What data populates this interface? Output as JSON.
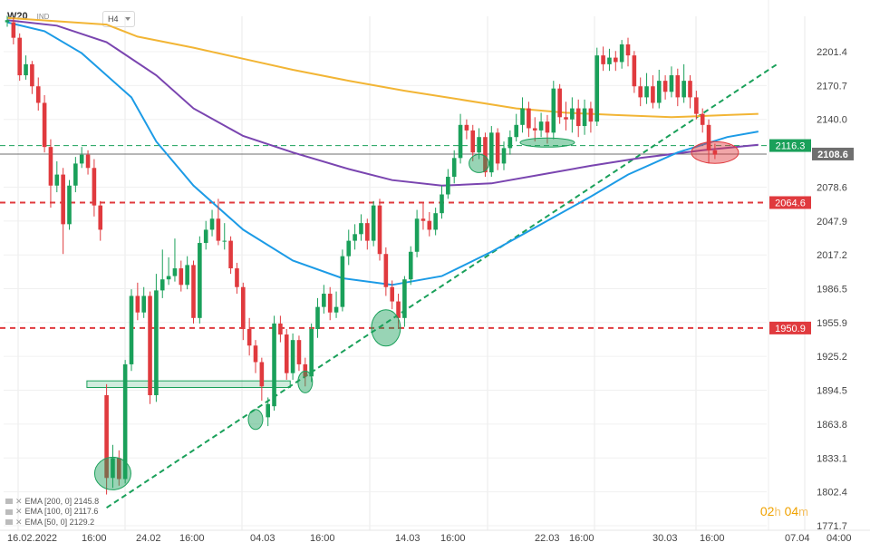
{
  "header": {
    "symbol": "W20",
    "type": "IND",
    "timeframe": "H4"
  },
  "countdown": {
    "hours": "02",
    "h_label": "h",
    "minutes": "04",
    "m_label": "m"
  },
  "legend": [
    {
      "label": "EMA [200, 0] 2145.8"
    },
    {
      "label": "EMA [100, 0] 2117.6"
    },
    {
      "label": "EMA [50, 0] 2129.2"
    }
  ],
  "colors": {
    "up": "#1aa05a",
    "down": "#e03a3e",
    "ema200": "#f2b535",
    "ema100": "#7a45b0",
    "ema50": "#1c9be6",
    "trend": "#1aa05a",
    "level": "#e03a3e",
    "price_badge": "#6f6f6f"
  },
  "chart_data": {
    "type": "candlestick",
    "title": "W20",
    "y_ticks": [
      "2201.4",
      "2170.7",
      "2140.0",
      "2108.6",
      "2078.6",
      "2047.9",
      "2017.2",
      "1986.5",
      "1955.9",
      "1925.2",
      "1894.5",
      "1863.8",
      "1833.1",
      "1802.4",
      "1771.7"
    ],
    "x_ticks": [
      "16.02.2022",
      "16:00",
      "24.02",
      "16:00",
      "04.03",
      "16:00",
      "14.03",
      "16:00",
      "22.03",
      "16:00",
      "30.03",
      "16:00",
      "07.04",
      "04:00"
    ],
    "ylim": [
      1771.7,
      2220
    ],
    "levels": [
      {
        "label": "2064.6",
        "value": 2064.6,
        "style": "dashed",
        "color": "#e03a3e"
      },
      {
        "label": "1950.9",
        "value": 1950.9,
        "style": "dashed",
        "color": "#e03a3e"
      },
      {
        "label": "2116.3",
        "value": 2116.3,
        "style": "dashed-green",
        "color": "#1aa05a"
      },
      {
        "label": "2108.6",
        "value": 2108.6,
        "style": "current",
        "color": "#6f6f6f"
      }
    ],
    "candles": [
      {
        "o": 2228,
        "c": 2230,
        "h": 2234,
        "l": 2224
      },
      {
        "o": 2228,
        "c": 2214,
        "h": 2232,
        "l": 2208
      },
      {
        "o": 2214,
        "c": 2180,
        "h": 2218,
        "l": 2175
      },
      {
        "o": 2180,
        "c": 2190,
        "h": 2198,
        "l": 2176
      },
      {
        "o": 2190,
        "c": 2170,
        "h": 2193,
        "l": 2163
      },
      {
        "o": 2170,
        "c": 2155,
        "h": 2178,
        "l": 2148
      },
      {
        "o": 2155,
        "c": 2115,
        "h": 2162,
        "l": 2110
      },
      {
        "o": 2115,
        "c": 2080,
        "h": 2122,
        "l": 2060
      },
      {
        "o": 2080,
        "c": 2090,
        "h": 2102,
        "l": 2074
      },
      {
        "o": 2090,
        "c": 2045,
        "h": 2096,
        "l": 2018
      },
      {
        "o": 2045,
        "c": 2080,
        "h": 2085,
        "l": 2040
      },
      {
        "o": 2080,
        "c": 2100,
        "h": 2106,
        "l": 2074
      },
      {
        "o": 2100,
        "c": 2108,
        "h": 2115,
        "l": 2096
      },
      {
        "o": 2108,
        "c": 2096,
        "h": 2112,
        "l": 2090
      },
      {
        "o": 2096,
        "c": 2062,
        "h": 2104,
        "l": 2052
      },
      {
        "o": 2062,
        "c": 2040,
        "h": 2066,
        "l": 2030
      },
      {
        "o": 1890,
        "c": 1815,
        "h": 1900,
        "l": 1800
      },
      {
        "o": 1815,
        "c": 1833,
        "h": 1845,
        "l": 1806
      },
      {
        "o": 1833,
        "c": 1814,
        "h": 1840,
        "l": 1808
      },
      {
        "o": 1814,
        "c": 1918,
        "h": 1922,
        "l": 1810
      },
      {
        "o": 1918,
        "c": 1980,
        "h": 1986,
        "l": 1912
      },
      {
        "o": 1980,
        "c": 1965,
        "h": 1992,
        "l": 1958
      },
      {
        "o": 1965,
        "c": 1980,
        "h": 1988,
        "l": 1960
      },
      {
        "o": 1980,
        "c": 1890,
        "h": 1984,
        "l": 1882
      },
      {
        "o": 1890,
        "c": 1985,
        "h": 2000,
        "l": 1884
      },
      {
        "o": 1985,
        "c": 1995,
        "h": 2022,
        "l": 1978
      },
      {
        "o": 1995,
        "c": 1998,
        "h": 2015,
        "l": 1990
      },
      {
        "o": 1998,
        "c": 2005,
        "h": 2032,
        "l": 1993
      },
      {
        "o": 2005,
        "c": 1990,
        "h": 2012,
        "l": 1984
      },
      {
        "o": 1990,
        "c": 2008,
        "h": 2016,
        "l": 1986
      },
      {
        "o": 2008,
        "c": 1960,
        "h": 2012,
        "l": 1955
      },
      {
        "o": 1960,
        "c": 2028,
        "h": 2034,
        "l": 1955
      },
      {
        "o": 2028,
        "c": 2040,
        "h": 2048,
        "l": 2022
      },
      {
        "o": 2040,
        "c": 2050,
        "h": 2058,
        "l": 2034
      },
      {
        "o": 2050,
        "c": 2030,
        "h": 2068,
        "l": 2026
      },
      {
        "o": 2030,
        "c": 2030,
        "h": 2046,
        "l": 2022
      },
      {
        "o": 2030,
        "c": 2005,
        "h": 2034,
        "l": 2000
      },
      {
        "o": 2005,
        "c": 1988,
        "h": 2010,
        "l": 1982
      },
      {
        "o": 1988,
        "c": 1950,
        "h": 1992,
        "l": 1940
      },
      {
        "o": 1950,
        "c": 1935,
        "h": 1960,
        "l": 1926
      },
      {
        "o": 1935,
        "c": 1920,
        "h": 1940,
        "l": 1910
      },
      {
        "o": 1920,
        "c": 1898,
        "h": 1924,
        "l": 1885
      },
      {
        "o": 1870,
        "c": 1882,
        "h": 1888,
        "l": 1862
      },
      {
        "o": 1880,
        "c": 1955,
        "h": 1962,
        "l": 1876
      },
      {
        "o": 1955,
        "c": 1945,
        "h": 1962,
        "l": 1938
      },
      {
        "o": 1945,
        "c": 1910,
        "h": 1950,
        "l": 1904
      },
      {
        "o": 1910,
        "c": 1940,
        "h": 1946,
        "l": 1904
      },
      {
        "o": 1940,
        "c": 1918,
        "h": 1944,
        "l": 1912
      },
      {
        "o": 1918,
        "c": 1907,
        "h": 1924,
        "l": 1898
      },
      {
        "o": 1907,
        "c": 1950,
        "h": 1955,
        "l": 1902
      },
      {
        "o": 1950,
        "c": 1970,
        "h": 1978,
        "l": 1942
      },
      {
        "o": 1970,
        "c": 1982,
        "h": 1990,
        "l": 1964
      },
      {
        "o": 1982,
        "c": 1965,
        "h": 1988,
        "l": 1958
      },
      {
        "o": 1965,
        "c": 1970,
        "h": 1984,
        "l": 1960
      },
      {
        "o": 1970,
        "c": 2016,
        "h": 2022,
        "l": 1966
      },
      {
        "o": 2016,
        "c": 2030,
        "h": 2040,
        "l": 2008
      },
      {
        "o": 2030,
        "c": 2036,
        "h": 2045,
        "l": 2022
      },
      {
        "o": 2036,
        "c": 2046,
        "h": 2054,
        "l": 2030
      },
      {
        "o": 2046,
        "c": 2030,
        "h": 2050,
        "l": 2022
      },
      {
        "o": 2030,
        "c": 2062,
        "h": 2066,
        "l": 2025
      },
      {
        "o": 2062,
        "c": 2018,
        "h": 2068,
        "l": 2012
      },
      {
        "o": 2018,
        "c": 1988,
        "h": 2024,
        "l": 1980
      },
      {
        "o": 1988,
        "c": 1975,
        "h": 1994,
        "l": 1968
      },
      {
        "o": 1975,
        "c": 1960,
        "h": 1982,
        "l": 1950
      },
      {
        "o": 1960,
        "c": 1995,
        "h": 1998,
        "l": 1952
      },
      {
        "o": 1995,
        "c": 2020,
        "h": 2025,
        "l": 1990
      },
      {
        "o": 2020,
        "c": 2050,
        "h": 2058,
        "l": 2015
      },
      {
        "o": 2050,
        "c": 2048,
        "h": 2064,
        "l": 2040
      },
      {
        "o": 2048,
        "c": 2040,
        "h": 2056,
        "l": 2034
      },
      {
        "o": 2040,
        "c": 2055,
        "h": 2060,
        "l": 2035
      },
      {
        "o": 2055,
        "c": 2072,
        "h": 2080,
        "l": 2050
      },
      {
        "o": 2072,
        "c": 2088,
        "h": 2095,
        "l": 2068
      },
      {
        "o": 2088,
        "c": 2105,
        "h": 2112,
        "l": 2082
      },
      {
        "o": 2105,
        "c": 2135,
        "h": 2145,
        "l": 2100
      },
      {
        "o": 2135,
        "c": 2130,
        "h": 2140,
        "l": 2122
      },
      {
        "o": 2130,
        "c": 2110,
        "h": 2135,
        "l": 2102
      },
      {
        "o": 2110,
        "c": 2124,
        "h": 2132,
        "l": 2104
      },
      {
        "o": 2124,
        "c": 2092,
        "h": 2128,
        "l": 2088
      },
      {
        "o": 2092,
        "c": 2128,
        "h": 2134,
        "l": 2088
      },
      {
        "o": 2128,
        "c": 2100,
        "h": 2132,
        "l": 2094
      },
      {
        "o": 2100,
        "c": 2114,
        "h": 2120,
        "l": 2094
      },
      {
        "o": 2114,
        "c": 2124,
        "h": 2130,
        "l": 2108
      },
      {
        "o": 2124,
        "c": 2135,
        "h": 2145,
        "l": 2120
      },
      {
        "o": 2135,
        "c": 2150,
        "h": 2160,
        "l": 2128
      },
      {
        "o": 2150,
        "c": 2132,
        "h": 2156,
        "l": 2124
      },
      {
        "o": 2132,
        "c": 2130,
        "h": 2142,
        "l": 2120
      },
      {
        "o": 2130,
        "c": 2138,
        "h": 2146,
        "l": 2124
      },
      {
        "o": 2138,
        "c": 2128,
        "h": 2144,
        "l": 2118
      },
      {
        "o": 2128,
        "c": 2168,
        "h": 2175,
        "l": 2122
      },
      {
        "o": 2168,
        "c": 2142,
        "h": 2172,
        "l": 2136
      },
      {
        "o": 2142,
        "c": 2140,
        "h": 2156,
        "l": 2130
      },
      {
        "o": 2140,
        "c": 2150,
        "h": 2160,
        "l": 2128
      },
      {
        "o": 2150,
        "c": 2134,
        "h": 2158,
        "l": 2124
      },
      {
        "o": 2134,
        "c": 2150,
        "h": 2158,
        "l": 2126
      },
      {
        "o": 2150,
        "c": 2138,
        "h": 2156,
        "l": 2128
      },
      {
        "o": 2138,
        "c": 2198,
        "h": 2205,
        "l": 2134
      },
      {
        "o": 2198,
        "c": 2190,
        "h": 2206,
        "l": 2184
      },
      {
        "o": 2190,
        "c": 2196,
        "h": 2204,
        "l": 2184
      },
      {
        "o": 2196,
        "c": 2192,
        "h": 2202,
        "l": 2184
      },
      {
        "o": 2192,
        "c": 2208,
        "h": 2212,
        "l": 2186
      },
      {
        "o": 2208,
        "c": 2198,
        "h": 2214,
        "l": 2188
      },
      {
        "o": 2198,
        "c": 2170,
        "h": 2202,
        "l": 2164
      },
      {
        "o": 2170,
        "c": 2160,
        "h": 2178,
        "l": 2152
      },
      {
        "o": 2160,
        "c": 2170,
        "h": 2182,
        "l": 2154
      },
      {
        "o": 2170,
        "c": 2155,
        "h": 2180,
        "l": 2150
      },
      {
        "o": 2155,
        "c": 2175,
        "h": 2185,
        "l": 2150
      },
      {
        "o": 2175,
        "c": 2165,
        "h": 2180,
        "l": 2158
      },
      {
        "o": 2165,
        "c": 2180,
        "h": 2188,
        "l": 2160
      },
      {
        "o": 2180,
        "c": 2160,
        "h": 2186,
        "l": 2152
      },
      {
        "o": 2160,
        "c": 2175,
        "h": 2190,
        "l": 2155
      },
      {
        "o": 2175,
        "c": 2160,
        "h": 2180,
        "l": 2150
      },
      {
        "o": 2160,
        "c": 2145,
        "h": 2166,
        "l": 2140
      },
      {
        "o": 2145,
        "c": 2135,
        "h": 2150,
        "l": 2128
      },
      {
        "o": 2135,
        "c": 2112,
        "h": 2140,
        "l": 2100
      },
      {
        "o": 2112,
        "c": 2108,
        "h": 2118,
        "l": 2104
      }
    ],
    "ema200": [
      [
        0,
        2232
      ],
      [
        16,
        2226
      ],
      [
        21,
        2215
      ],
      [
        30,
        2205
      ],
      [
        38,
        2195
      ],
      [
        46,
        2185
      ],
      [
        55,
        2175
      ],
      [
        64,
        2166
      ],
      [
        73,
        2158
      ],
      [
        82,
        2150
      ],
      [
        90,
        2146
      ],
      [
        98,
        2144
      ],
      [
        107,
        2142
      ],
      [
        116,
        2144
      ],
      [
        121,
        2145
      ]
    ],
    "ema100": [
      [
        0,
        2230
      ],
      [
        8,
        2225
      ],
      [
        16,
        2210
      ],
      [
        24,
        2180
      ],
      [
        30,
        2150
      ],
      [
        38,
        2125
      ],
      [
        46,
        2110
      ],
      [
        55,
        2095
      ],
      [
        62,
        2085
      ],
      [
        70,
        2080
      ],
      [
        78,
        2082
      ],
      [
        86,
        2090
      ],
      [
        94,
        2098
      ],
      [
        102,
        2105
      ],
      [
        112,
        2112
      ],
      [
        121,
        2117
      ]
    ],
    "ema50": [
      [
        0,
        2228
      ],
      [
        6,
        2220
      ],
      [
        12,
        2200
      ],
      [
        20,
        2160
      ],
      [
        24,
        2120
      ],
      [
        30,
        2080
      ],
      [
        38,
        2040
      ],
      [
        46,
        2012
      ],
      [
        54,
        1996
      ],
      [
        62,
        1990
      ],
      [
        70,
        1998
      ],
      [
        78,
        2020
      ],
      [
        86,
        2045
      ],
      [
        94,
        2070
      ],
      [
        100,
        2090
      ],
      [
        108,
        2110
      ],
      [
        116,
        2124
      ],
      [
        121,
        2129
      ]
    ],
    "trendlines": [
      {
        "from": [
          16,
          1788
        ],
        "to": [
          124,
          2190
        ],
        "color": "#1aa05a",
        "style": "dashed"
      }
    ],
    "highlight_zones": [
      {
        "type": "rect",
        "from": [
          14,
          1903
        ],
        "to": [
          45,
          1897
        ],
        "color": "#1aa05a"
      }
    ],
    "circles": [
      {
        "x": 17,
        "y": 1819,
        "rx": 20,
        "ry": 18,
        "color": "#1aa05a"
      },
      {
        "x": 40,
        "y": 1868,
        "rx": 8,
        "ry": 11,
        "color": "#1aa05a"
      },
      {
        "x": 48,
        "y": 1902,
        "rx": 8,
        "ry": 12,
        "color": "#1aa05a"
      },
      {
        "x": 61,
        "y": 1951,
        "rx": 16,
        "ry": 20,
        "color": "#1aa05a"
      },
      {
        "x": 76,
        "y": 2100,
        "rx": 11,
        "ry": 10,
        "color": "#1aa05a"
      },
      {
        "x": 87,
        "y": 2119,
        "rx": 30,
        "ry": 5,
        "color": "#1aa05a"
      },
      {
        "x": 114,
        "y": 2110,
        "rx": 26,
        "ry": 12,
        "color": "#e03a3e"
      }
    ],
    "series": [
      {
        "name": "EMA [200, 0] 2145.8",
        "color": "#f2b535"
      },
      {
        "name": "EMA [100, 0] 2117.6",
        "color": "#7a45b0"
      },
      {
        "name": "EMA [50, 0] 2129.2",
        "color": "#1c9be6"
      }
    ]
  }
}
